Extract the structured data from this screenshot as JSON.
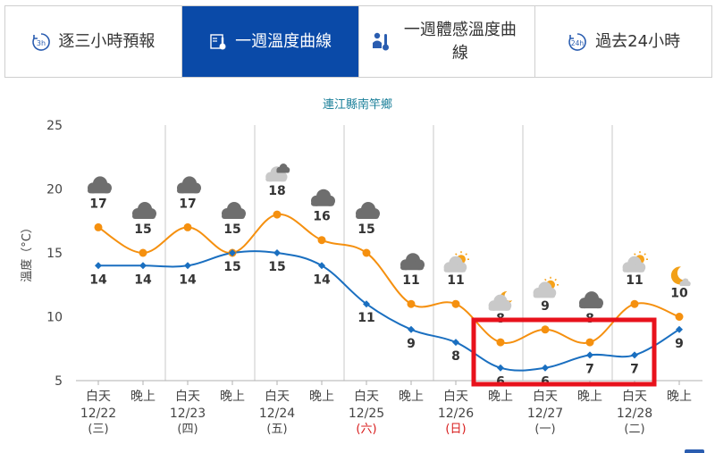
{
  "tabs": [
    {
      "label": "逐三小時預報",
      "icon": "3h-clock-icon",
      "active": false
    },
    {
      "label": "一週溫度曲線",
      "icon": "thermometer-chart-icon",
      "active": true
    },
    {
      "label": "一週體感溫度曲線",
      "icon": "person-thermometer-icon",
      "active": false
    },
    {
      "label": "過去24小時",
      "icon": "24h-clock-icon",
      "active": false
    }
  ],
  "chart_data": {
    "type": "line",
    "title": "連江縣南竿鄉",
    "ylabel": "溫度（°C）",
    "ylim": [
      5,
      25
    ],
    "yticks": [
      5,
      10,
      15,
      20,
      25
    ],
    "grid": "vertical",
    "categories": [
      {
        "period": "白天",
        "date": "12/22",
        "weekday": "(三)",
        "holiday": false
      },
      {
        "period": "晚上",
        "date": "",
        "weekday": "",
        "holiday": false
      },
      {
        "period": "白天",
        "date": "12/23",
        "weekday": "(四)",
        "holiday": false
      },
      {
        "period": "晚上",
        "date": "",
        "weekday": "",
        "holiday": false
      },
      {
        "period": "白天",
        "date": "12/24",
        "weekday": "(五)",
        "holiday": false
      },
      {
        "period": "晚上",
        "date": "",
        "weekday": "",
        "holiday": false
      },
      {
        "period": "白天",
        "date": "12/25",
        "weekday": "(六)",
        "holiday": true
      },
      {
        "period": "晚上",
        "date": "",
        "weekday": "",
        "holiday": false
      },
      {
        "period": "白天",
        "date": "12/26",
        "weekday": "(日)",
        "holiday": true
      },
      {
        "period": "晚上",
        "date": "",
        "weekday": "",
        "holiday": false
      },
      {
        "period": "白天",
        "date": "12/27",
        "weekday": "(一)",
        "holiday": false
      },
      {
        "period": "晚上",
        "date": "",
        "weekday": "",
        "holiday": false
      },
      {
        "period": "白天",
        "date": "12/28",
        "weekday": "(二)",
        "holiday": false
      },
      {
        "period": "晚上",
        "date": "",
        "weekday": "",
        "holiday": false
      }
    ],
    "series": [
      {
        "key": "max",
        "color": "#f5900f",
        "marker": "circle",
        "values": [
          17,
          15,
          17,
          15,
          18,
          16,
          15,
          11,
          11,
          8,
          9,
          8,
          11,
          10
        ],
        "labels": [
          "17",
          "15",
          "17",
          "15",
          "18",
          "16",
          "15",
          "11",
          "11",
          "8",
          "9",
          "8",
          "11",
          "10"
        ]
      },
      {
        "key": "min",
        "color": "#1a6fc0",
        "marker": "diamond",
        "values": [
          14,
          14,
          14,
          15,
          15,
          14,
          11,
          9,
          8,
          6,
          6,
          7,
          7,
          9
        ],
        "labels": [
          "14",
          "14",
          "14",
          "15",
          "15",
          "14",
          "11",
          "9",
          "8",
          "6",
          "6",
          "7",
          "7",
          "9"
        ]
      }
    ],
    "weather_icons": [
      "cloudy-icon",
      "cloudy-icon",
      "cloudy-icon",
      "cloudy-icon",
      "partly-cloudy-icon",
      "cloudy-icon",
      "cloudy-icon",
      "cloudy-icon",
      "partly-sunny-icon",
      "partly-cloudy-night-icon",
      "partly-sunny-icon",
      "cloudy-icon",
      "partly-sunny-icon",
      "clear-night-icon"
    ],
    "highlight_box": {
      "from_index": 9,
      "to_index": 12,
      "color": "#e8121c"
    }
  }
}
